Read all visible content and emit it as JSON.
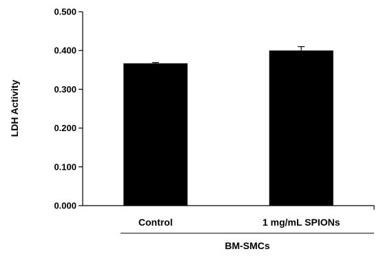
{
  "chart_data": {
    "type": "bar",
    "categories": [
      "Control",
      "1 mg/mL SPIONs"
    ],
    "values": [
      0.367,
      0.4
    ],
    "errors": [
      0.002,
      0.01
    ],
    "ylabel": "LDH Activity",
    "xgroup_label": "BM-SMCs",
    "ylim": [
      0,
      0.5
    ],
    "yticks": [
      "0.000",
      "0.100",
      "0.200",
      "0.300",
      "0.400",
      "0.500"
    ],
    "bar_color": "#000000",
    "grid": false,
    "legend": "none"
  }
}
